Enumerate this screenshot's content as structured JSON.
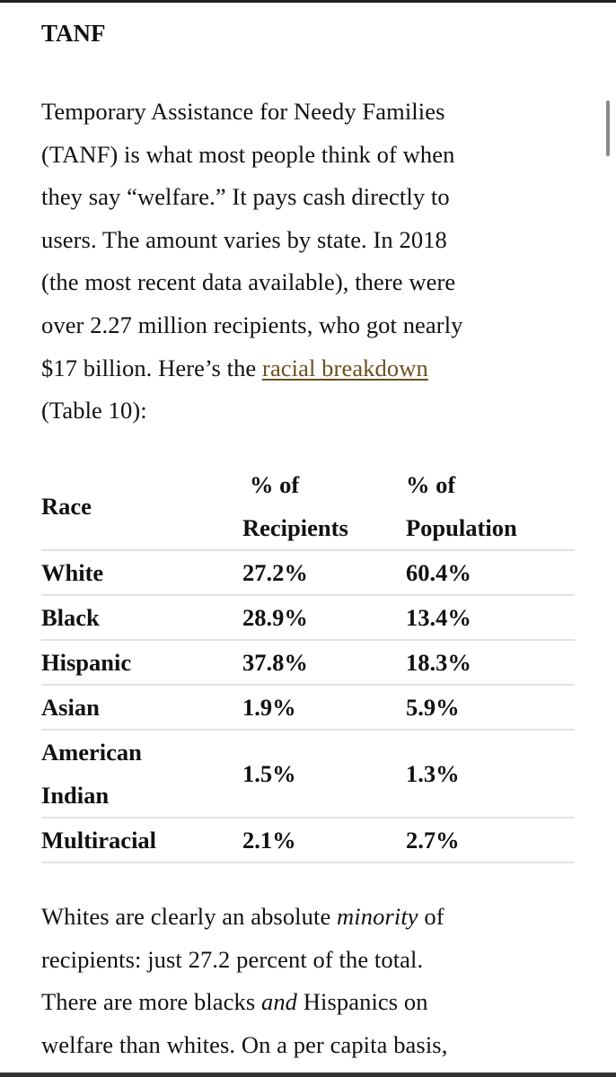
{
  "heading": "TANF",
  "intro": {
    "lines": [
      "Temporary Assistance for Needy Families",
      "(TANF) is what most people think of when",
      "they say “welfare.” It pays cash directly to",
      "users. The amount varies by state. In 2018",
      "(the most recent data available), there were",
      "over 2.27 million recipients, who got nearly"
    ],
    "line7_pre": "$17 billion. Here’s the ",
    "link": "racial breakdown",
    "line8": "(Table 10):"
  },
  "table": {
    "headers": {
      "race": "Race",
      "recipients_1": "% of",
      "recipients_2": "Recipients",
      "population_1": "% of",
      "population_2": "Population"
    },
    "rows": [
      {
        "race": "White",
        "recipients": "27.2%",
        "population": "60.4%"
      },
      {
        "race": "Black",
        "recipients": "28.9%",
        "population": "13.4%"
      },
      {
        "race": "Hispanic",
        "recipients": "37.8%",
        "population": "18.3%"
      },
      {
        "race": "Asian",
        "recipients": "1.9%",
        "population": "5.9%"
      },
      {
        "race": "American Indian",
        "race_1": "American",
        "race_2": "Indian",
        "recipients": "1.5%",
        "population": "1.3%"
      },
      {
        "race": "Multiracial",
        "recipients": "2.1%",
        "population": "2.7%"
      }
    ]
  },
  "outro": {
    "l1_pre": "Whites are clearly an absolute ",
    "l1_em": "minority",
    "l1_post": " of",
    "l2": "recipients: just 27.2 percent of the total.",
    "l3_pre": "There are more blacks ",
    "l3_em": "and",
    "l3_post": " Hispanics on",
    "l4": "welfare than whites. On a per capita basis,"
  }
}
